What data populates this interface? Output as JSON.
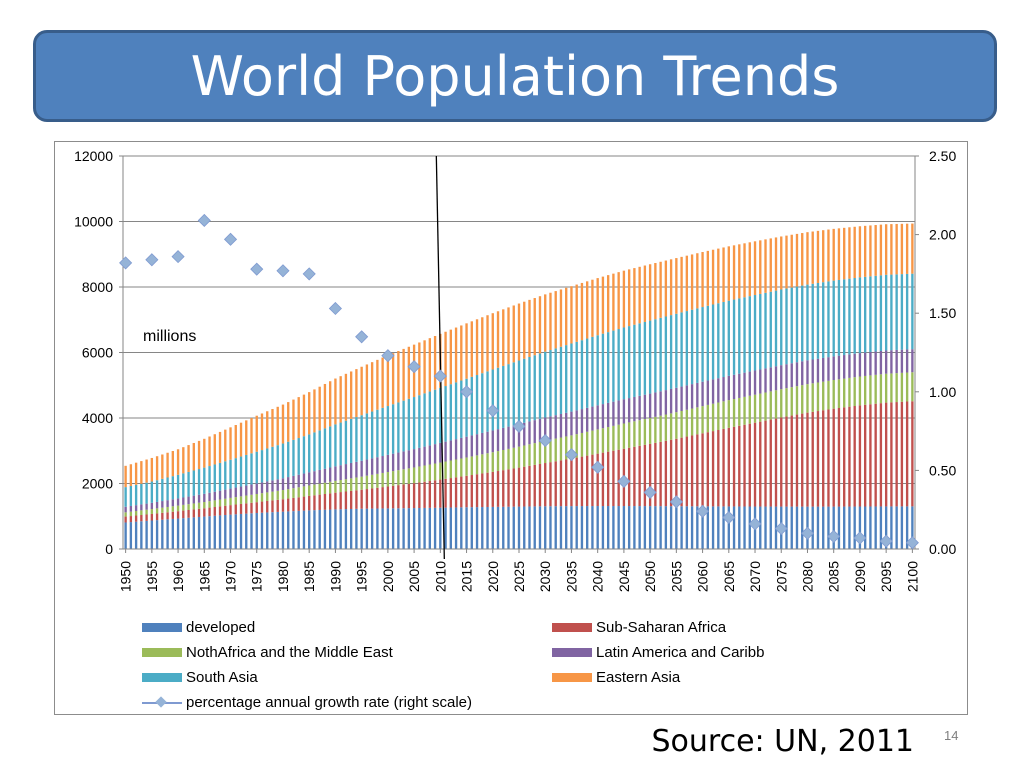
{
  "slide": {
    "title": "World Population Trends",
    "source": "Source: UN, 2011",
    "number": "14"
  },
  "chart_data": {
    "type": "bar",
    "stacked": true,
    "annotation": "millions",
    "y_left": {
      "lim": [
        0,
        12000
      ],
      "ticks": [
        "0",
        "2000",
        "4000",
        "6000",
        "8000",
        "10000",
        "12000"
      ]
    },
    "y_right": {
      "lim": [
        0,
        2.5
      ],
      "ticks": [
        "0.00",
        "0.50",
        "1.00",
        "1.50",
        "2.00",
        "2.50"
      ]
    },
    "grid": true,
    "legend_position": "bottom",
    "x_labels": [
      "1950",
      "1955",
      "1960",
      "1965",
      "1970",
      "1975",
      "1980",
      "1985",
      "1990",
      "1995",
      "2000",
      "2005",
      "2010",
      "2015",
      "2020",
      "2025",
      "2030",
      "2035",
      "2040",
      "2045",
      "2050",
      "2055",
      "2060",
      "2065",
      "2070",
      "2075",
      "2080",
      "2085",
      "2090",
      "2095",
      "2100"
    ],
    "vertical_marker_year": "2010",
    "series": [
      {
        "name": "developed",
        "color": "#4f81bd",
        "axis": "left",
        "values": [
          810,
          870,
          930,
          990,
          1050,
          1100,
          1140,
          1180,
          1210,
          1230,
          1240,
          1250,
          1260,
          1275,
          1285,
          1295,
          1305,
          1310,
          1312,
          1312,
          1310,
          1307,
          1303,
          1300,
          1297,
          1295,
          1294,
          1295,
          1297,
          1300,
          1302
        ]
      },
      {
        "name": "Sub-Saharan Africa",
        "color": "#c0504d",
        "axis": "left",
        "values": [
          180,
          200,
          225,
          255,
          290,
          330,
          380,
          440,
          510,
          580,
          670,
          760,
          860,
          960,
          1070,
          1190,
          1320,
          1450,
          1600,
          1750,
          1900,
          2060,
          2230,
          2400,
          2560,
          2720,
          2870,
          2990,
          3090,
          3170,
          3210
        ]
      },
      {
        "name": "NothAfrica and the Middle East",
        "color": "#9bbb59",
        "axis": "left",
        "values": [
          130,
          150,
          170,
          190,
          220,
          250,
          280,
          320,
          360,
          400,
          440,
          480,
          520,
          560,
          600,
          640,
          680,
          710,
          740,
          770,
          790,
          810,
          830,
          845,
          855,
          865,
          870,
          875,
          880,
          882,
          885
        ]
      },
      {
        "name": "Latin America and Caribb",
        "color": "#8064a2",
        "axis": "left",
        "values": [
          170,
          190,
          220,
          250,
          285,
          320,
          360,
          400,
          445,
          485,
          525,
          560,
          600,
          635,
          665,
          690,
          710,
          725,
          735,
          742,
          745,
          746,
          745,
          742,
          738,
          733,
          728,
          722,
          716,
          710,
          705
        ]
      },
      {
        "name": "South Asia",
        "color": "#4bacc6",
        "axis": "left",
        "values": [
          600,
          650,
          720,
          800,
          880,
          970,
          1060,
          1160,
          1280,
          1390,
          1490,
          1590,
          1680,
          1770,
          1860,
          1940,
          2010,
          2080,
          2140,
          2190,
          2230,
          2260,
          2280,
          2295,
          2305,
          2310,
          2312,
          2313,
          2312,
          2310,
          2305
        ]
      },
      {
        "name": "Eastern Asia",
        "color": "#f79646",
        "axis": "left",
        "values": [
          650,
          720,
          780,
          880,
          990,
          1100,
          1190,
          1290,
          1400,
          1480,
          1550,
          1600,
          1650,
          1690,
          1720,
          1740,
          1750,
          1750,
          1745,
          1735,
          1720,
          1700,
          1680,
          1660,
          1640,
          1620,
          1600,
          1580,
          1560,
          1545,
          1530
        ]
      },
      {
        "name": "percentage annual growth rate (right scale)",
        "color": "#95b3d7",
        "axis": "right",
        "type": "scatter",
        "values": [
          1.82,
          1.84,
          1.86,
          2.09,
          1.97,
          1.78,
          1.77,
          1.75,
          1.53,
          1.35,
          1.23,
          1.16,
          1.1,
          1.0,
          0.88,
          0.78,
          0.69,
          0.6,
          0.52,
          0.43,
          0.36,
          0.3,
          0.24,
          0.2,
          0.16,
          0.13,
          0.1,
          0.08,
          0.07,
          0.05,
          0.04
        ]
      }
    ]
  }
}
